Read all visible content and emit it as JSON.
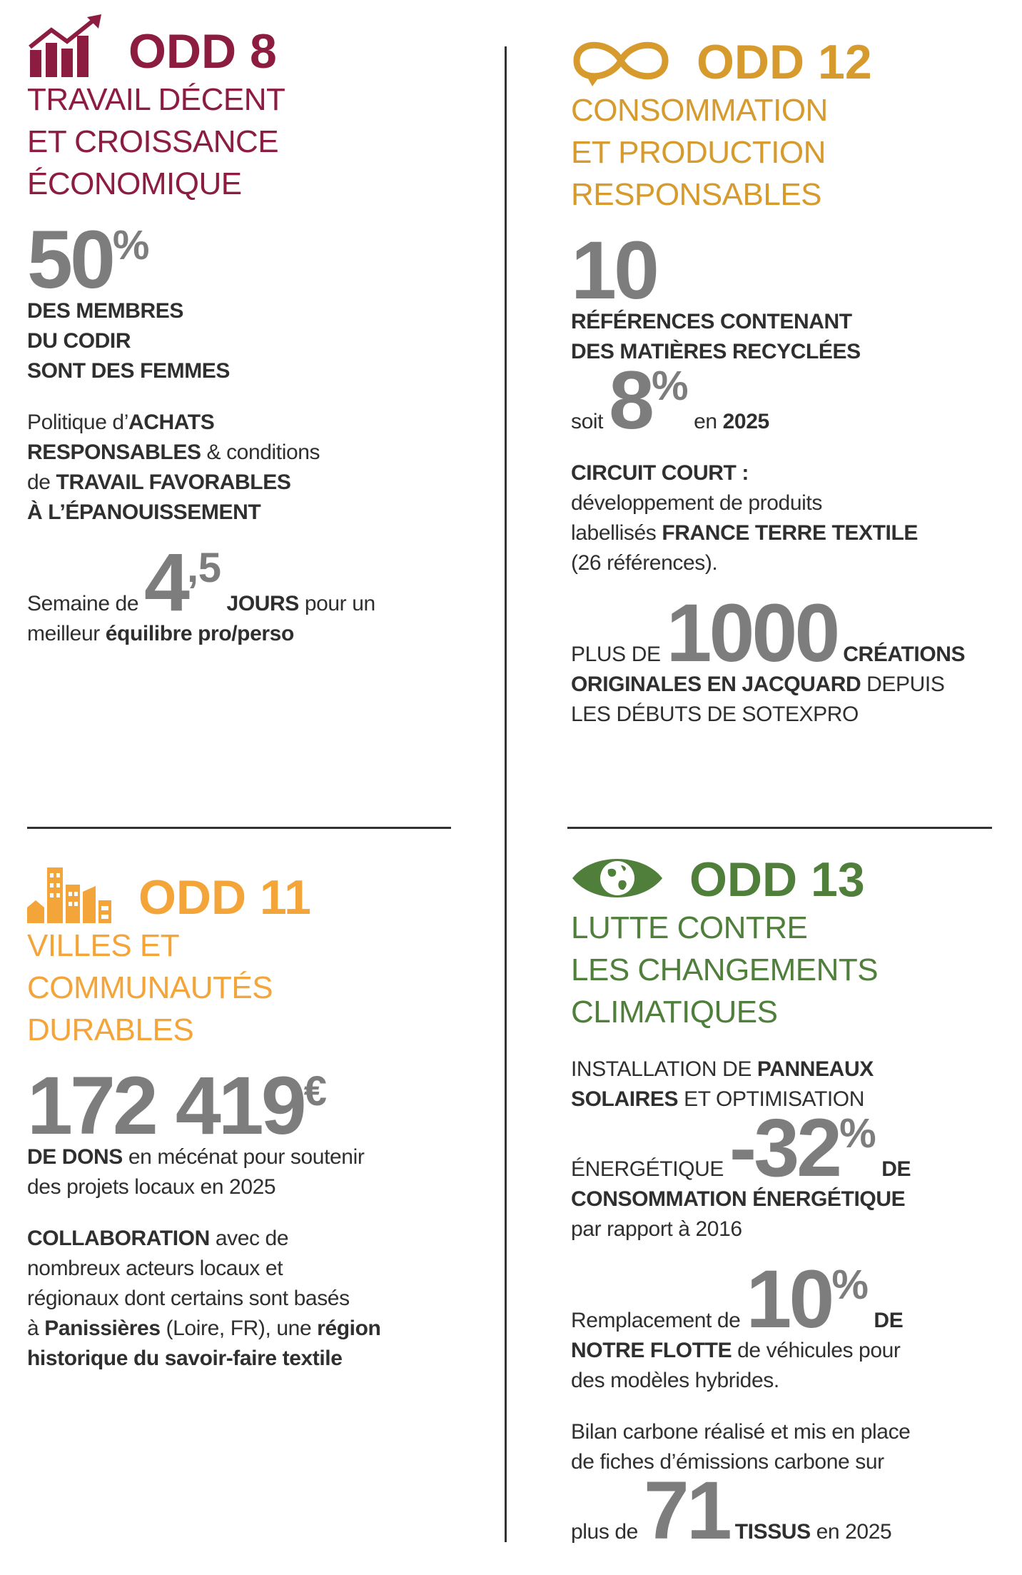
{
  "sections": [
    {
      "label": "ODD 8",
      "color": "#8c1d40",
      "title": [
        "TRAVAIL DÉCENT",
        "ET CROISSANCE",
        "ÉCONOMIQUE"
      ],
      "blocks": [
        [
          [
            {
              "text": "50",
              "s": "number"
            },
            {
              "text": "%",
              "s": "exponent"
            }
          ],
          [
            {
              "text": "DES MEMBRES",
              "s": "bold"
            }
          ],
          [
            {
              "text": "DU CODIR",
              "s": "bold"
            }
          ],
          [
            {
              "text": "SONT DES FEMMES",
              "s": "bold"
            }
          ]
        ],
        [
          [
            {
              "text": "Politique d’",
              "s": "regular"
            },
            {
              "text": "ACHATS",
              "s": "bold"
            }
          ],
          [
            {
              "text": "RESPONSABLES",
              "s": "bold"
            },
            {
              "text": " & conditions",
              "s": "regular"
            }
          ],
          [
            {
              "text": "de ",
              "s": "regular"
            },
            {
              "text": "TRAVAIL FAVORABLES",
              "s": "bold"
            }
          ],
          [
            {
              "text": "À L’ÉPANOUISSEMENT",
              "s": "bold"
            }
          ]
        ],
        [
          [
            {
              "text": "Semaine de ",
              "s": "regular"
            },
            {
              "text": "4",
              "s": "number"
            },
            {
              "text": ",5",
              "s": "exponent"
            },
            {
              "text": " JOURS",
              "s": "bold"
            },
            {
              "text": " pour un",
              "s": "regular"
            }
          ],
          [
            {
              "text": "meilleur ",
              "s": "regular"
            },
            {
              "text": "équilibre pro/perso",
              "s": "bold"
            }
          ]
        ]
      ]
    },
    {
      "label": "ODD 12",
      "color": "#d69a2d",
      "title": [
        "CONSOMMATION",
        "ET PRODUCTION",
        "RESPONSABLES"
      ],
      "blocks": [
        [
          [
            {
              "text": "10",
              "s": "number"
            }
          ],
          [
            {
              "text": "RÉFÉRENCES CONTENANT",
              "s": "bold"
            }
          ],
          [
            {
              "text": "DES MATIÈRES RECYCLÉES",
              "s": "bold"
            }
          ],
          [
            {
              "text": "soit ",
              "s": "regular"
            },
            {
              "text": "8",
              "s": "number"
            },
            {
              "text": "%",
              "s": "exponent"
            },
            {
              "text": " en ",
              "s": "regular"
            },
            {
              "text": "2025",
              "s": "bold"
            }
          ]
        ],
        [
          [
            {
              "text": "CIRCUIT COURT :",
              "s": "bold"
            }
          ],
          [
            {
              "text": "développement de produits",
              "s": "regular"
            }
          ],
          [
            {
              "text": "labellisés ",
              "s": "regular"
            },
            {
              "text": "FRANCE TERRE TEXTILE",
              "s": "bold"
            }
          ],
          [
            {
              "text": "(26 références).",
              "s": "regular"
            }
          ]
        ],
        [
          [
            {
              "text": "PLUS DE ",
              "s": "regular"
            },
            {
              "text": "1000",
              "s": "number"
            },
            {
              "text": " CRÉATIONS",
              "s": "bold"
            }
          ],
          [
            {
              "text": "ORIGINALES EN JACQUARD",
              "s": "bold"
            },
            {
              "text": " DEPUIS",
              "s": "regular"
            }
          ],
          [
            {
              "text": "LES DÉBUTS DE SOTEXPRO",
              "s": "regular"
            }
          ]
        ]
      ]
    },
    {
      "label": "ODD 11",
      "color": "#f3a53a",
      "title": [
        "VILLES ET",
        "COMMUNAUTÉS",
        "DURABLES"
      ],
      "blocks": [
        [
          [
            {
              "text": "172 419",
              "s": "number"
            },
            {
              "text": "€",
              "s": "exponent"
            }
          ],
          [
            {
              "text": "DE DONS",
              "s": "bold"
            },
            {
              "text": " en mécénat pour soutenir",
              "s": "regular"
            }
          ],
          [
            {
              "text": "des projets locaux en 2025",
              "s": "regular"
            }
          ]
        ],
        [
          [
            {
              "text": "COLLABORATION",
              "s": "bold"
            },
            {
              "text": " avec de",
              "s": "regular"
            }
          ],
          [
            {
              "text": "nombreux acteurs locaux et",
              "s": "regular"
            }
          ],
          [
            {
              "text": "régionaux dont certains sont basés",
              "s": "regular"
            }
          ],
          [
            {
              "text": "à ",
              "s": "regular"
            },
            {
              "text": "Panissières",
              "s": "bold"
            },
            {
              "text": " (Loire, FR), une ",
              "s": "regular"
            },
            {
              "text": "région",
              "s": "bold"
            }
          ],
          [
            {
              "text": "historique du savoir-faire textile",
              "s": "bold"
            }
          ]
        ]
      ]
    },
    {
      "label": "ODD 13",
      "color": "#4f7f3b",
      "title": [
        "LUTTE CONTRE",
        "LES CHANGEMENTS",
        "CLIMATIQUES"
      ],
      "blocks": [
        [
          [
            {
              "text": "INSTALLATION DE ",
              "s": "regular"
            },
            {
              "text": "PANNEAUX",
              "s": "bold"
            }
          ],
          [
            {
              "text": "SOLAIRES",
              "s": "bold"
            },
            {
              "text": " ET OPTIMISATION",
              "s": "regular"
            }
          ],
          [
            {
              "text": "ÉNERGÉTIQUE ",
              "s": "regular"
            },
            {
              "text": "-32",
              "s": "number"
            },
            {
              "text": "%",
              "s": "exponent"
            },
            {
              "text": " DE",
              "s": "bold"
            }
          ],
          [
            {
              "text": "CONSOMMATION ÉNERGÉTIQUE",
              "s": "bold"
            }
          ],
          [
            {
              "text": "par rapport à 2016",
              "s": "regular"
            }
          ]
        ],
        [
          [
            {
              "text": "Remplacement de ",
              "s": "regular"
            },
            {
              "text": "10",
              "s": "number"
            },
            {
              "text": "%",
              "s": "exponent"
            },
            {
              "text": " DE",
              "s": "bold"
            }
          ],
          [
            {
              "text": "NOTRE FLOTTE",
              "s": "bold"
            },
            {
              "text": " de véhicules pour",
              "s": "regular"
            }
          ],
          [
            {
              "text": "des modèles hybrides.",
              "s": "regular"
            }
          ]
        ],
        [
          [
            {
              "text": "Bilan carbone réalisé et mis en place",
              "s": "regular"
            }
          ],
          [
            {
              "text": "de fiches d’émissions carbone sur",
              "s": "regular"
            }
          ],
          [
            {
              "text": "plus de ",
              "s": "regular"
            },
            {
              "text": "71",
              "s": "number"
            },
            {
              "text": " TISSUS",
              "s": "bold"
            },
            {
              "text": " en 2025",
              "s": "regular"
            }
          ]
        ]
      ]
    }
  ]
}
